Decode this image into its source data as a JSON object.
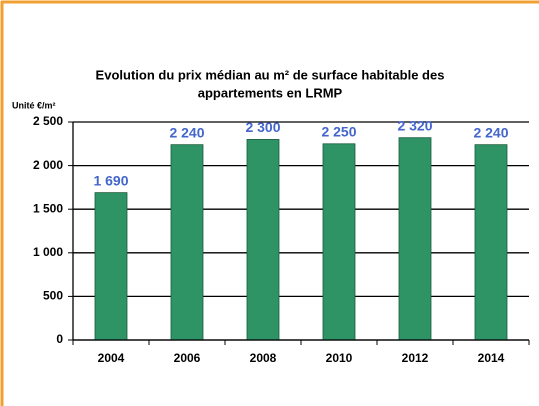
{
  "chart_data": {
    "type": "bar",
    "title": [
      "Evolution du prix médian au m² de surface habitable des",
      "appartements en LRMP"
    ],
    "y_axis_label": "Unité €/m²",
    "categories": [
      "2004",
      "2006",
      "2008",
      "2010",
      "2012",
      "2014"
    ],
    "values": [
      1690,
      2240,
      2300,
      2250,
      2320,
      2240
    ],
    "value_labels": [
      "1 690",
      "2 240",
      "2 300",
      "2 250",
      "2 320",
      "2 240"
    ],
    "color": "#2e9466",
    "ylim": [
      0,
      2500
    ],
    "yticks": [
      0,
      500,
      {
        "value": 1000,
        "label": "1 000"
      },
      {
        "value": 1500,
        "label": "1 500"
      },
      {
        "value": 2000,
        "label": "2 000"
      },
      {
        "value": 2500,
        "label": "2 500"
      }
    ],
    "grid": true
  }
}
